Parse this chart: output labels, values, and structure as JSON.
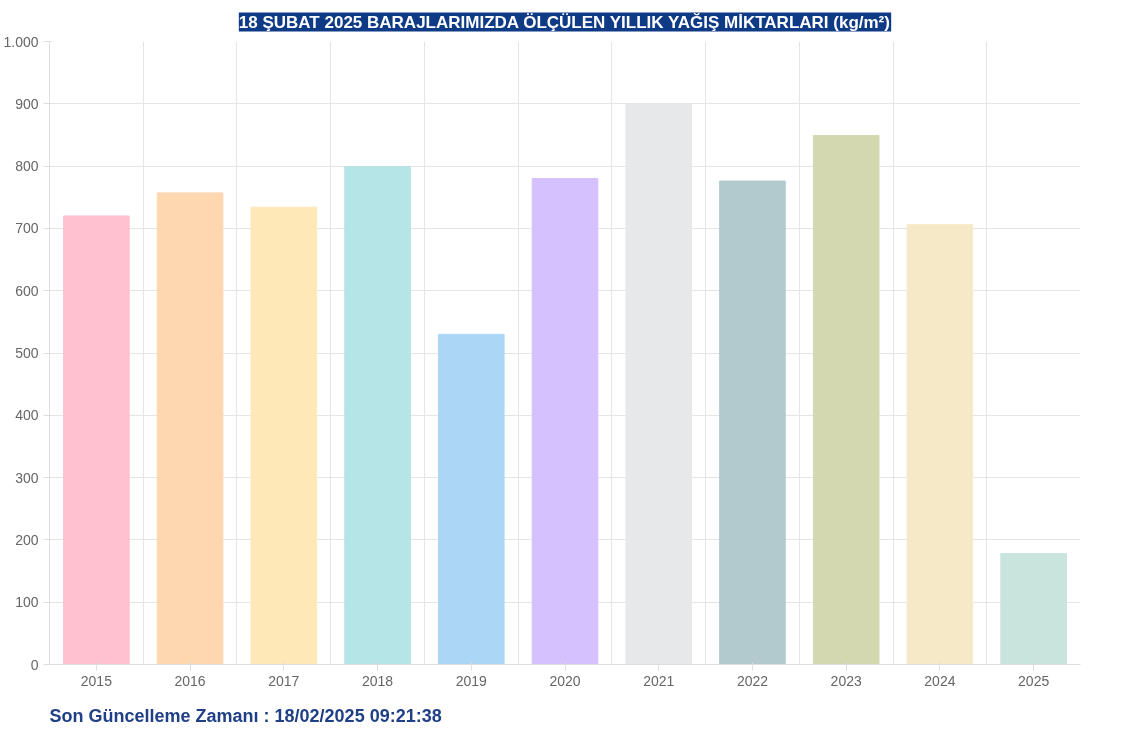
{
  "chart_data": {
    "type": "bar",
    "title": "18 ŞUBAT 2025 BARAJLARIMIZDA ÖLÇÜLEN YILLIK YAĞIŞ MİKTARLARI (kg/m²)",
    "categories": [
      "2015",
      "2016",
      "2017",
      "2018",
      "2019",
      "2020",
      "2021",
      "2022",
      "2023",
      "2024",
      "2025"
    ],
    "values": [
      720,
      757,
      734,
      799,
      530,
      780,
      900,
      776,
      849,
      706,
      178
    ],
    "colors": [
      "#ffc0cf",
      "#fed6b0",
      "#ffe8b8",
      "#b5e5e6",
      "#acd6f5",
      "#d5c1fd",
      "#e7e8ea",
      "#b2cace",
      "#d3d8b1",
      "#f6e9c8",
      "#c9e4dc"
    ],
    "ylim": [
      0,
      1000
    ],
    "yticks": [
      0,
      100,
      200,
      300,
      400,
      500,
      600,
      700,
      800,
      900,
      {
        "value": 1000,
        "label": "1.000"
      }
    ],
    "grid": true,
    "annotations": [
      "Son Güncelleme Zamanı : 18/02/2025 09:21:38"
    ]
  }
}
